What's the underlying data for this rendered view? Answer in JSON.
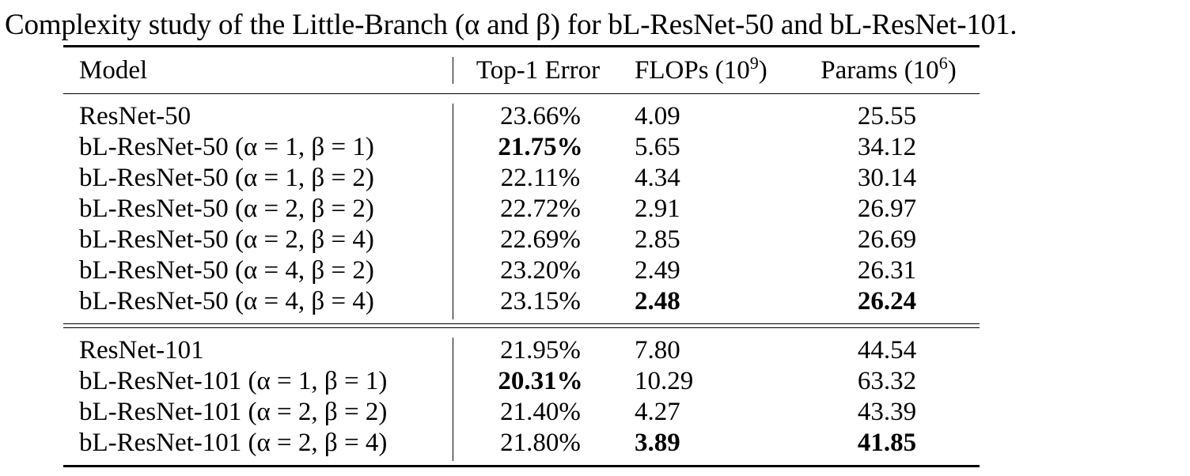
{
  "caption": "Complexity study of the Little-Branch (α and β) for bL-ResNet-50 and bL-ResNet-101.",
  "table": {
    "headers": {
      "model": "Model",
      "top1_error": "Top-1 Error",
      "flops": "FLOPs (10",
      "flops_exp": "9",
      "flops_close": ")",
      "params": "Params (10",
      "params_exp": "6",
      "params_close": ")"
    },
    "groups": [
      {
        "rows": [
          {
            "model": "ResNet-50",
            "err": "23.66%",
            "flops": "4.09",
            "params": "25.55"
          },
          {
            "model": "bL-ResNet-50 (α = 1,  β = 1)",
            "err": "21.75%",
            "flops": "5.65",
            "params": "34.12",
            "bold_err": true
          },
          {
            "model": "bL-ResNet-50 (α = 1,  β = 2)",
            "err": "22.11%",
            "flops": "4.34",
            "params": "30.14"
          },
          {
            "model": "bL-ResNet-50 (α = 2,  β = 2)",
            "err": "22.72%",
            "flops": "2.91",
            "params": "26.97"
          },
          {
            "model": "bL-ResNet-50 (α = 2,  β = 4)",
            "err": "22.69%",
            "flops": "2.85",
            "params": "26.69"
          },
          {
            "model": "bL-ResNet-50 (α = 4,  β = 2)",
            "err": "23.20%",
            "flops": "2.49",
            "params": "26.31"
          },
          {
            "model": "bL-ResNet-50 (α = 4,  β = 4)",
            "err": "23.15%",
            "flops": "2.48",
            "params": "26.24",
            "bold_flops": true,
            "bold_params": true
          }
        ]
      },
      {
        "rows": [
          {
            "model": "ResNet-101",
            "err": "21.95%",
            "flops": "7.80",
            "params": "44.54"
          },
          {
            "model": "bL-ResNet-101 (α = 1,  β = 1)",
            "err": "20.31%",
            "flops": "10.29",
            "params": "63.32",
            "bold_err": true
          },
          {
            "model": "bL-ResNet-101 (α = 2,  β = 2)",
            "err": "21.40%",
            "flops": "4.27",
            "params": "43.39"
          },
          {
            "model": "bL-ResNet-101 (α = 2,  β = 4)",
            "err": "21.80%",
            "flops": "3.89",
            "params": "41.85",
            "bold_flops": true,
            "bold_params": true
          }
        ]
      }
    ]
  }
}
